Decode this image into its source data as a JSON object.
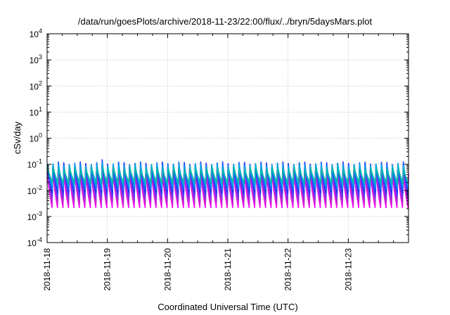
{
  "chart_data": {
    "type": "line",
    "title": "/data/run/goesPlots/archive/2018-11-23/22:00/flux/../bryn/5daysMars.plot",
    "xlabel": "Coordinated Universal Time (UTC)",
    "ylabel": "cSv/day",
    "yscale": "log",
    "ylim": [
      0.0001,
      10000
    ],
    "xlim_days": [
      0,
      6.0
    ],
    "grid": true,
    "x_ticks": [
      {
        "pos": 0,
        "label": "2018-11-18"
      },
      {
        "pos": 1,
        "label": "2018-11-19"
      },
      {
        "pos": 2,
        "label": "2018-11-20"
      },
      {
        "pos": 3,
        "label": "2018-11-21"
      },
      {
        "pos": 4,
        "label": "2018-11-22"
      },
      {
        "pos": 5,
        "label": "2018-11-23"
      }
    ],
    "y_ticks": [
      {
        "exp": -4,
        "base": "10",
        "sup": "-4"
      },
      {
        "exp": -3,
        "base": "10",
        "sup": "-3"
      },
      {
        "exp": -2,
        "base": "10",
        "sup": "-2"
      },
      {
        "exp": -1,
        "base": "10",
        "sup": "-1"
      },
      {
        "exp": 0,
        "base": "10",
        "sup": "0"
      },
      {
        "exp": 1,
        "base": "10",
        "sup": "1"
      },
      {
        "exp": 2,
        "base": "10",
        "sup": "2"
      },
      {
        "exp": 3,
        "base": "10",
        "sup": "3"
      },
      {
        "exp": 4,
        "base": "10",
        "sup": "4"
      }
    ],
    "cycles_per_day": 11,
    "series": [
      {
        "color": "#ff00ff",
        "peak": 0.05,
        "trough": 0.0022
      },
      {
        "color": "#cc22cc",
        "peak": 0.06,
        "trough": 0.003
      },
      {
        "color": "#9933cc",
        "peak": 0.07,
        "trough": 0.004
      },
      {
        "color": "#6633ff",
        "peak": 0.085,
        "trough": 0.0055
      },
      {
        "color": "#2233ee",
        "peak": 0.11,
        "trough": 0.008
      },
      {
        "color": "#1177ff",
        "peak": 0.1,
        "trough": 0.011
      },
      {
        "color": "#00aadd",
        "peak": 0.09,
        "trough": 0.015
      },
      {
        "color": "#00bbaa",
        "peak": 0.07,
        "trough": 0.02
      }
    ]
  }
}
